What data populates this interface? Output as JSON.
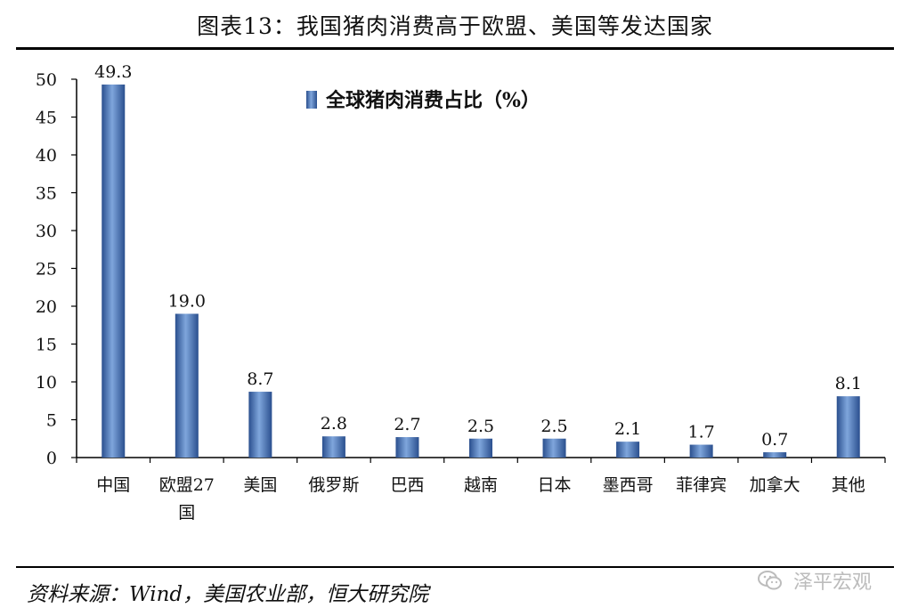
{
  "header": {
    "title": "图表13：我国猪肉消费高于欧盟、美国等发达国家"
  },
  "footer": {
    "source": "资料来源：Wind，美国农业部，恒大研究院",
    "watermark": "泽平宏观"
  },
  "colors": {
    "bar": "#3f6fb8",
    "bar_light": "#7fa6dc",
    "bar_dark": "#2a4f8e"
  },
  "chart_data": {
    "type": "bar",
    "categories": [
      "中国",
      "欧盟27国",
      "美国",
      "俄罗斯",
      "巴西",
      "越南",
      "日本",
      "墨西哥",
      "菲律宾",
      "加拿大",
      "其他"
    ],
    "category_lines": [
      [
        "中国"
      ],
      [
        "欧盟27",
        "国"
      ],
      [
        "美国"
      ],
      [
        "俄罗斯"
      ],
      [
        "巴西"
      ],
      [
        "越南"
      ],
      [
        "日本"
      ],
      [
        "墨西哥"
      ],
      [
        "菲律宾"
      ],
      [
        "加拿大"
      ],
      [
        "其他"
      ]
    ],
    "series": [
      {
        "name": "全球猪肉消费占比（%）",
        "values": [
          49.3,
          19.0,
          8.7,
          2.8,
          2.7,
          2.5,
          2.5,
          2.1,
          1.7,
          0.7,
          8.1
        ]
      }
    ],
    "data_labels": [
      "49.3",
      "19.0",
      "8.7",
      "2.8",
      "2.7",
      "2.5",
      "2.5",
      "2.1",
      "1.7",
      "0.7",
      "8.1"
    ],
    "yticks": [
      0,
      5,
      10,
      15,
      20,
      25,
      30,
      35,
      40,
      45,
      50
    ],
    "ylim": [
      0,
      50
    ],
    "grid": false,
    "legend_position": "top-center"
  }
}
